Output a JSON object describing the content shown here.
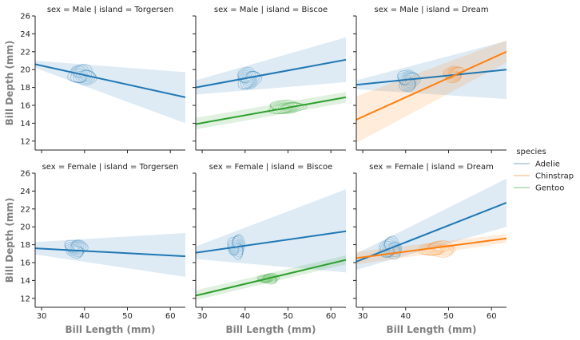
{
  "chart_data": {
    "type": "scatter",
    "kind": "facet-grid regression with kde contours",
    "rows": [
      "Male",
      "Female"
    ],
    "cols": [
      "Torgersen",
      "Biscoe",
      "Dream"
    ],
    "xlabel": "Bill Length (mm)",
    "ylabel": "Bill Depth (mm)",
    "xlim": [
      28.5,
      63.5
    ],
    "ylim": [
      11.0,
      26.0
    ],
    "xticks": [
      30,
      40,
      50,
      60
    ],
    "yticks": [
      12,
      14,
      16,
      18,
      20,
      22,
      24,
      26
    ],
    "legend": {
      "title": "species",
      "placement": "right",
      "entries": [
        {
          "name": "Adelie",
          "color": "#1f77b4"
        },
        {
          "name": "Chinstrap",
          "color": "#ff7f0e"
        },
        {
          "name": "Gentoo",
          "color": "#2ca02c"
        }
      ]
    },
    "panels": [
      {
        "title": "sex = Male | island = Torgersen",
        "fits": [
          {
            "species": "Adelie",
            "x": [
              28.5,
              63.5
            ],
            "y": [
              20.6,
              16.9
            ],
            "band_start": [
              20.2,
              21.0
            ],
            "band_end": [
              14.0,
              19.7
            ]
          }
        ],
        "densities": [
          {
            "species": "Adelie",
            "cx": 39.5,
            "cy": 19.4,
            "sx": 3.2,
            "sy": 1.1,
            "rot": -0.18,
            "levels": 8
          }
        ]
      },
      {
        "title": "sex = Male | island = Biscoe",
        "fits": [
          {
            "species": "Adelie",
            "x": [
              28.5,
              63.5
            ],
            "y": [
              18.0,
              21.1
            ],
            "band_start": [
              17.2,
              18.8
            ],
            "band_end": [
              18.6,
              23.6
            ]
          },
          {
            "species": "Gentoo",
            "x": [
              28.5,
              63.5
            ],
            "y": [
              13.9,
              16.9
            ],
            "band_start": [
              13.3,
              14.6
            ],
            "band_end": [
              16.3,
              17.5
            ]
          }
        ],
        "densities": [
          {
            "species": "Adelie",
            "cx": 40.8,
            "cy": 19.0,
            "sx": 2.7,
            "sy": 1.2,
            "rot": 0.15,
            "levels": 8
          },
          {
            "species": "Gentoo",
            "cx": 49.5,
            "cy": 15.8,
            "sx": 4.2,
            "sy": 0.75,
            "rot": 0.04,
            "levels": 8
          }
        ]
      },
      {
        "title": "sex = Male | island = Dream",
        "fits": [
          {
            "species": "Adelie",
            "x": [
              28.5,
              63.5
            ],
            "y": [
              18.3,
              20.0
            ],
            "band_start": [
              17.8,
              18.8
            ],
            "band_end": [
              16.7,
              23.2
            ]
          },
          {
            "species": "Chinstrap",
            "x": [
              28.5,
              63.5
            ],
            "y": [
              14.4,
              22.0
            ],
            "band_start": [
              11.8,
              17.0
            ],
            "band_end": [
              20.8,
              23.3
            ]
          }
        ],
        "densities": [
          {
            "species": "Adelie",
            "cx": 40.6,
            "cy": 18.8,
            "sx": 2.5,
            "sy": 1.2,
            "rot": 0.1,
            "levels": 8
          },
          {
            "species": "Chinstrap",
            "cx": 51.2,
            "cy": 19.5,
            "sx": 2.3,
            "sy": 0.9,
            "rot": 0.35,
            "levels": 8
          }
        ]
      },
      {
        "title": "sex = Female | island = Torgersen",
        "fits": [
          {
            "species": "Adelie",
            "x": [
              28.5,
              63.5
            ],
            "y": [
              17.6,
              16.7
            ],
            "band_start": [
              16.9,
              18.3
            ],
            "band_end": [
              14.4,
              19.3
            ]
          }
        ],
        "densities": [
          {
            "species": "Adelie",
            "cx": 38.0,
            "cy": 17.6,
            "sx": 2.6,
            "sy": 1.0,
            "rot": -0.05,
            "levels": 8
          }
        ]
      },
      {
        "title": "sex = Female | island = Biscoe",
        "fits": [
          {
            "species": "Adelie",
            "x": [
              28.5,
              63.5
            ],
            "y": [
              17.1,
              19.5
            ],
            "band_start": [
              16.4,
              17.8
            ],
            "band_end": [
              14.9,
              24.2
            ]
          },
          {
            "species": "Gentoo",
            "x": [
              28.5,
              63.5
            ],
            "y": [
              12.3,
              16.3
            ],
            "band_start": [
              11.8,
              12.9
            ],
            "band_end": [
              15.8,
              16.8
            ]
          }
        ],
        "densities": [
          {
            "species": "Adelie",
            "cx": 38.0,
            "cy": 17.8,
            "sx": 2.0,
            "sy": 1.3,
            "rot": 0.0,
            "levels": 8
          },
          {
            "species": "Gentoo",
            "cx": 45.5,
            "cy": 14.2,
            "sx": 2.5,
            "sy": 0.55,
            "rot": 0.05,
            "levels": 8
          }
        ]
      },
      {
        "title": "sex = Female | island = Dream",
        "fits": [
          {
            "species": "Adelie",
            "x": [
              28.5,
              63.5
            ],
            "y": [
              16.1,
              22.7
            ],
            "band_start": [
              15.2,
              17.0
            ],
            "band_end": [
              20.0,
              25.4
            ]
          },
          {
            "species": "Chinstrap",
            "x": [
              28.5,
              63.5
            ],
            "y": [
              16.5,
              18.7
            ],
            "band_start": [
              15.8,
              17.2
            ],
            "band_end": [
              18.2,
              19.2
            ]
          }
        ],
        "densities": [
          {
            "species": "Adelie",
            "cx": 36.5,
            "cy": 17.6,
            "sx": 2.6,
            "sy": 1.2,
            "rot": 0.15,
            "levels": 8
          },
          {
            "species": "Chinstrap",
            "cx": 47.5,
            "cy": 17.5,
            "sx": 4.2,
            "sy": 0.85,
            "rot": 0.02,
            "levels": 8
          }
        ]
      }
    ]
  }
}
